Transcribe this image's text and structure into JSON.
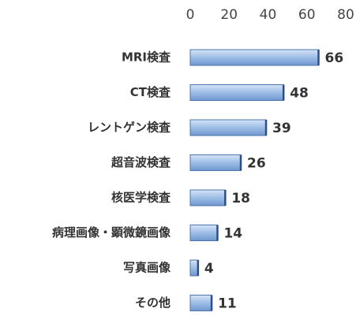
{
  "chart_data": {
    "type": "bar",
    "orientation": "horizontal",
    "categories": [
      "MRI検査",
      "CT検査",
      "レントゲン検査",
      "超音波検査",
      "核医学検査",
      "病理画像・顕微鏡画像",
      "写真画像",
      "その他"
    ],
    "values": [
      66,
      48,
      39,
      26,
      18,
      14,
      4,
      11
    ],
    "color": "#9dbde6",
    "xlim": [
      0,
      80
    ],
    "xticks": [
      0,
      20,
      40,
      60,
      80
    ]
  }
}
